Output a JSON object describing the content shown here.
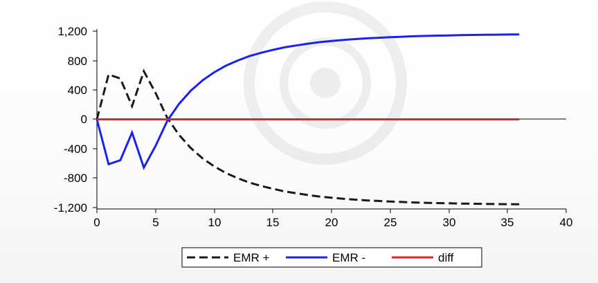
{
  "chart_data": {
    "type": "line",
    "title": "",
    "xlabel": "",
    "ylabel": "",
    "xlim": [
      0,
      40
    ],
    "ylim": [
      -1200,
      1200
    ],
    "x_ticks": [
      0,
      5,
      10,
      15,
      20,
      25,
      30,
      35,
      40
    ],
    "x_tick_labels": [
      "0",
      "5",
      "10",
      "15",
      "20",
      "25",
      "30",
      "35",
      "40"
    ],
    "y_ticks": [
      1200,
      800,
      400,
      0,
      -400,
      -800,
      -1200
    ],
    "y_tick_labels": [
      "1,200",
      "800",
      "400",
      "0",
      "-400",
      "-800",
      "-1,200"
    ],
    "grid": false,
    "legend_position": "bottom-center",
    "x": [
      0,
      1,
      2,
      3,
      4,
      5,
      6,
      7,
      8,
      9,
      10,
      11,
      12,
      13,
      14,
      15,
      16,
      17,
      18,
      19,
      20,
      21,
      22,
      23,
      24,
      25,
      26,
      27,
      28,
      29,
      30,
      31,
      32,
      33,
      34,
      35,
      36
    ],
    "series": [
      {
        "name": "EMR +",
        "color": "#1a1a1a",
        "dash": "dashed",
        "values": [
          0,
          610,
          555,
          180,
          655,
          360,
          20,
          -210,
          -390,
          -530,
          -640,
          -730,
          -800,
          -860,
          -905,
          -945,
          -980,
          -1005,
          -1030,
          -1050,
          -1065,
          -1080,
          -1092,
          -1102,
          -1110,
          -1118,
          -1124,
          -1130,
          -1135,
          -1139,
          -1142,
          -1145,
          -1148,
          -1150,
          -1152,
          -1154,
          -1156
        ]
      },
      {
        "name": "EMR -",
        "color": "#1a22ee",
        "dash": "solid",
        "values": [
          0,
          -610,
          -555,
          -180,
          -655,
          -360,
          -20,
          210,
          390,
          530,
          640,
          730,
          800,
          860,
          905,
          945,
          980,
          1005,
          1030,
          1050,
          1065,
          1080,
          1092,
          1102,
          1110,
          1118,
          1124,
          1130,
          1135,
          1139,
          1142,
          1145,
          1148,
          1150,
          1152,
          1154,
          1156
        ]
      },
      {
        "name": "diff",
        "color": "#ee1f1f",
        "dash": "solid",
        "values": [
          0,
          0,
          0,
          0,
          0,
          0,
          0,
          0,
          0,
          0,
          0,
          0,
          0,
          0,
          0,
          0,
          0,
          0,
          0,
          0,
          0,
          0,
          0,
          0,
          0,
          0,
          0,
          0,
          0,
          0,
          0,
          0,
          0,
          0,
          0,
          0,
          0
        ]
      }
    ]
  }
}
